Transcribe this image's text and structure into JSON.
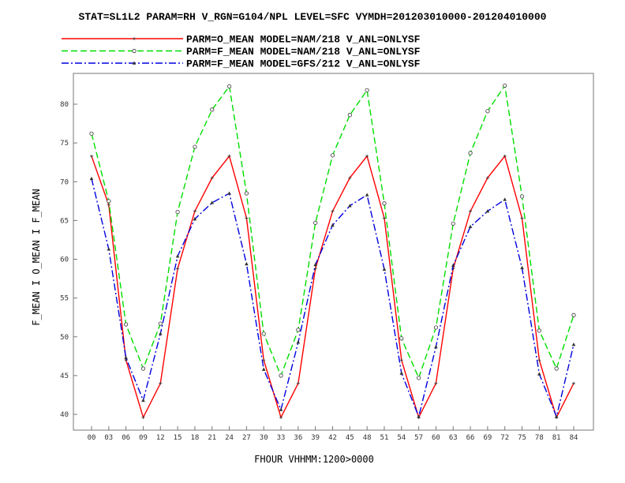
{
  "chart_data": {
    "type": "line",
    "title": "STAT=SL1L2 PARAM=RH V_RGN=G104/NPL LEVEL=SFC VYMDH=201203010000-201204010000",
    "xlabel": "FHOUR VHHMM:1200>0000",
    "ylabel": "F_MEAN I O_MEAN I F_MEAN",
    "categories": [
      "00",
      "03",
      "06",
      "09",
      "12",
      "15",
      "18",
      "21",
      "24",
      "27",
      "30",
      "33",
      "36",
      "39",
      "42",
      "45",
      "48",
      "51",
      "54",
      "57",
      "60",
      "63",
      "66",
      "69",
      "72",
      "75",
      "78",
      "81",
      "84"
    ],
    "yticks": [
      "40",
      "45",
      "50",
      "55",
      "60",
      "65",
      "70",
      "75",
      "80"
    ],
    "ylim": [
      39,
      84.5
    ],
    "grid": false,
    "legend": "top",
    "series": [
      {
        "name": "PARM=O_MEAN MODEL=NAM/218 V_ANL=ONLYSF",
        "color": "#ff0000",
        "style": "solid",
        "marker": "plus",
        "values": [
          73.3,
          67.0,
          47.0,
          39.6,
          44.0,
          58.8,
          66.2,
          70.5,
          73.3,
          65.3,
          47.0,
          39.6,
          44.0,
          58.8,
          66.2,
          70.5,
          73.3,
          65.3,
          47.0,
          39.6,
          44.0,
          58.8,
          66.2,
          70.5,
          73.3,
          65.3,
          47.0,
          39.6,
          44.0
        ]
      },
      {
        "name": "PARM=F_MEAN MODEL=NAM/218 V_ANL=ONLYSF",
        "color": "#00dd00",
        "style": "dashed",
        "marker": "circle",
        "values": [
          76.2,
          67.5,
          51.6,
          45.9,
          51.7,
          66.1,
          74.5,
          79.3,
          82.3,
          68.5,
          50.4,
          45.0,
          50.9,
          64.7,
          73.4,
          78.6,
          81.8,
          67.2,
          49.8,
          44.7,
          51.2,
          64.6,
          73.7,
          79.1,
          82.4,
          68.1,
          50.8,
          45.9,
          52.8
        ]
      },
      {
        "name": "PARM=F_MEAN MODEL=GFS/212 V_ANL=ONLYSF",
        "color": "#0000dd",
        "style": "dashdot",
        "marker": "triangle",
        "values": [
          70.4,
          61.3,
          47.3,
          41.8,
          50.4,
          60.4,
          65.2,
          67.3,
          68.5,
          59.4,
          45.8,
          40.6,
          49.3,
          59.3,
          64.4,
          66.9,
          68.3,
          58.7,
          45.3,
          39.7,
          48.7,
          59.2,
          64.2,
          66.2,
          67.7,
          58.9,
          45.2,
          39.7,
          49.0
        ]
      }
    ]
  }
}
